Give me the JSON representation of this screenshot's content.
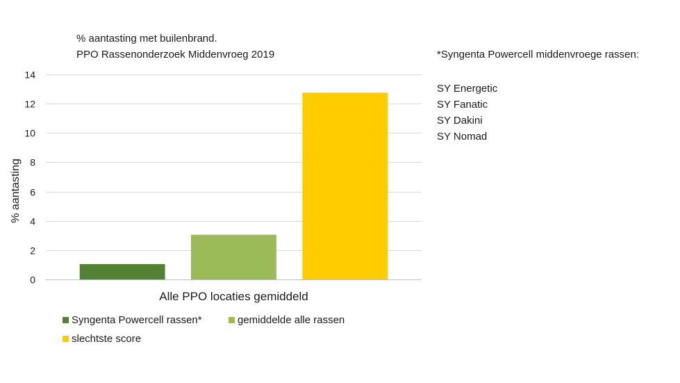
{
  "chart_data": {
    "type": "bar",
    "title": "% aantasting met builenbrand.",
    "subtitle": "PPO Rassenonderzoek Middenvroeg 2019",
    "ylabel": "% aantasting",
    "categories": [
      "Alle PPO locaties gemiddeld"
    ],
    "ylim": [
      0,
      14
    ],
    "yticks": [
      0,
      2,
      4,
      6,
      8,
      10,
      12,
      14
    ],
    "grid": true,
    "legend_position": "bottom",
    "series": [
      {
        "name": "Syngenta Powercell rassen*",
        "values": [
          1.05
        ],
        "color": "#548235"
      },
      {
        "name": "gemiddelde alle rassen",
        "values": [
          3.05
        ],
        "color": "#9bbb59"
      },
      {
        "name": "slechtste score",
        "values": [
          12.75
        ],
        "color": "#ffcc00"
      }
    ]
  },
  "note": {
    "heading": "*Syngenta Powercell middenvroege rassen:",
    "items": [
      "SY Energetic",
      "SY Fanatic",
      "SY Dakini",
      "SY Nomad"
    ]
  }
}
